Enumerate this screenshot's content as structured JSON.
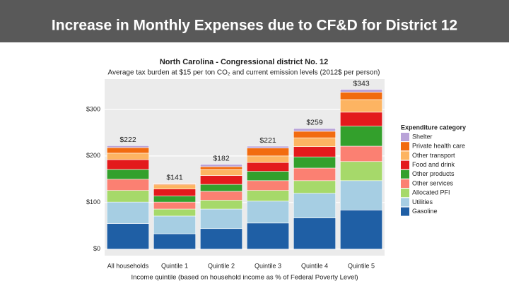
{
  "slide_title": "Increase in Monthly Expenses due to CF&D for District 12",
  "chart_data": {
    "type": "stacked_bar",
    "title": "North Carolina - Congressional district No. 12",
    "subtitle": "Average tax burden at $15 per ton CO₂ and current emission levels (2012$ per person)",
    "x_label": "Income quintile (based on household income as % of Federal Poverty Level)",
    "legend_title": "Expenditure category",
    "legend_position": "right",
    "grid": true,
    "categories": [
      "All households",
      "Quintile 1",
      "Quintile 2",
      "Quintile 3",
      "Quintile 4",
      "Quintile 5"
    ],
    "ylim": [
      -14,
      365
    ],
    "yticks": [
      {
        "value": 0,
        "label": "$0"
      },
      {
        "value": 100,
        "label": "$100"
      },
      {
        "value": 200,
        "label": "$200"
      },
      {
        "value": 300,
        "label": "$300"
      }
    ],
    "series": [
      {
        "name": "Gasoline",
        "color": "#1f5fa5",
        "values": [
          55,
          33,
          44,
          56,
          67,
          84
        ]
      },
      {
        "name": "Utilities",
        "color": "#a6cee3",
        "values": [
          46,
          38,
          42,
          47,
          53,
          63
        ]
      },
      {
        "name": "Allocated PFI",
        "color": "#a6d96a",
        "values": [
          25,
          15,
          19,
          23,
          27,
          41
        ]
      },
      {
        "name": "Other services",
        "color": "#fb8072",
        "values": [
          24,
          15,
          19,
          21,
          27,
          33
        ]
      },
      {
        "name": "Other products",
        "color": "#33a02c",
        "values": [
          21,
          13,
          15,
          20,
          24,
          43
        ]
      },
      {
        "name": "Food and drink",
        "color": "#e31a1c",
        "values": [
          21,
          15,
          19,
          19,
          22,
          30
        ]
      },
      {
        "name": "Other transport",
        "color": "#fdb462",
        "values": [
          14,
          9,
          13,
          14,
          19,
          27
        ]
      },
      {
        "name": "Private health care",
        "color": "#f26b0f",
        "values": [
          12,
          2,
          6,
          17,
          14,
          16
        ]
      },
      {
        "name": "Shelter",
        "color": "#b9a3d8",
        "values": [
          4,
          1,
          5,
          4,
          6,
          6
        ]
      }
    ],
    "totals": {
      "values": [
        222,
        141,
        182,
        221,
        259,
        343
      ],
      "value_labels": [
        "$222",
        "$141",
        "$182",
        "$221",
        "$259",
        "$343"
      ]
    }
  }
}
